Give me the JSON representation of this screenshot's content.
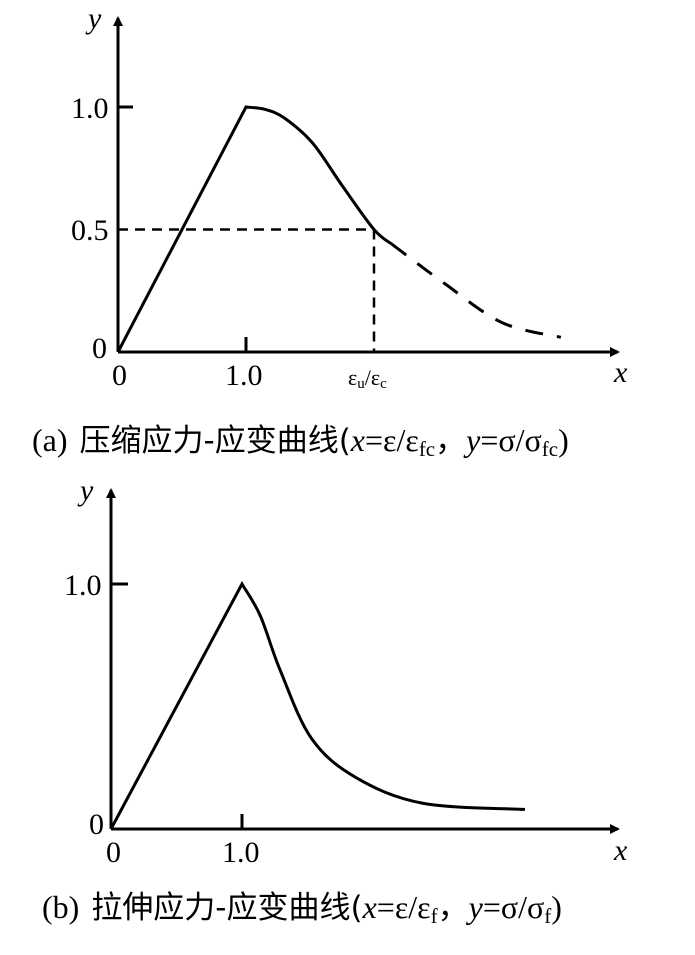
{
  "chart_data": [
    {
      "type": "line",
      "panel": "a",
      "xlabel": "x",
      "ylabel": "y",
      "x_ticks": [
        {
          "value": 0,
          "label": "0"
        },
        {
          "value": 1.0,
          "label": "1.0"
        },
        {
          "value": 2.0,
          "label_base1": "ε",
          "label_sub1": "u",
          "label_mid": "/ε",
          "label_sub2": "c"
        }
      ],
      "y_ticks": [
        {
          "value": 0,
          "label": "0"
        },
        {
          "value": 0.5,
          "label": "0.5"
        },
        {
          "value": 1.0,
          "label": "1.0"
        }
      ],
      "xlim": [
        0,
        3.9
      ],
      "ylim": [
        0,
        1.4
      ],
      "series": [
        {
          "style": "solid",
          "points": [
            [
              0,
              0
            ],
            [
              1.0,
              1.0
            ],
            [
              1.15,
              0.99
            ],
            [
              1.3,
              0.955
            ],
            [
              1.52,
              0.853
            ],
            [
              1.75,
              0.68
            ],
            [
              2.0,
              0.5
            ],
            [
              2.14,
              0.44
            ]
          ]
        },
        {
          "style": "dashed",
          "points": [
            [
              2.14,
              0.44
            ],
            [
              2.55,
              0.28
            ],
            [
              3.0,
              0.12
            ],
            [
              3.46,
              0.06
            ]
          ]
        }
      ],
      "reference_lines": [
        {
          "style": "dashed",
          "from": [
            0,
            0.5
          ],
          "to": [
            2.0,
            0.5
          ]
        },
        {
          "style": "dashed",
          "from": [
            2.0,
            0.5
          ],
          "to": [
            2.0,
            0
          ]
        }
      ],
      "caption": {
        "label": "(a)",
        "title": "压缩应力-应变曲线(",
        "x": "x",
        "eq1": "=ε/ε",
        "sub1": "fc",
        "sep": "，",
        "y": "y",
        "eq2": "=σ/σ",
        "sub2": "fc",
        "close": ")"
      }
    },
    {
      "type": "line",
      "panel": "b",
      "xlabel": "x",
      "ylabel": "y",
      "x_ticks": [
        {
          "value": 0,
          "label": "0"
        },
        {
          "value": 1.0,
          "label": "1.0"
        }
      ],
      "y_ticks": [
        {
          "value": 0,
          "label": "0"
        },
        {
          "value": 1.0,
          "label": "1.0"
        }
      ],
      "xlim": [
        0,
        3.9
      ],
      "ylim": [
        0,
        1.4
      ],
      "series": [
        {
          "style": "solid",
          "points": [
            [
              0,
              0
            ],
            [
              1.0,
              1.0
            ],
            [
              1.14,
              0.87
            ],
            [
              1.29,
              0.65
            ],
            [
              1.53,
              0.37
            ],
            [
              1.87,
              0.21
            ],
            [
              2.38,
              0.105
            ],
            [
              3.16,
              0.08
            ]
          ]
        }
      ],
      "caption": {
        "label": "(b)",
        "title": "拉伸应力-应变曲线(",
        "x": "x",
        "eq1": "=ε/ε",
        "sub1": "f",
        "sep": "，",
        "y": "y",
        "eq2": "=σ/σ",
        "sub2": "f",
        "close": ")"
      }
    }
  ]
}
